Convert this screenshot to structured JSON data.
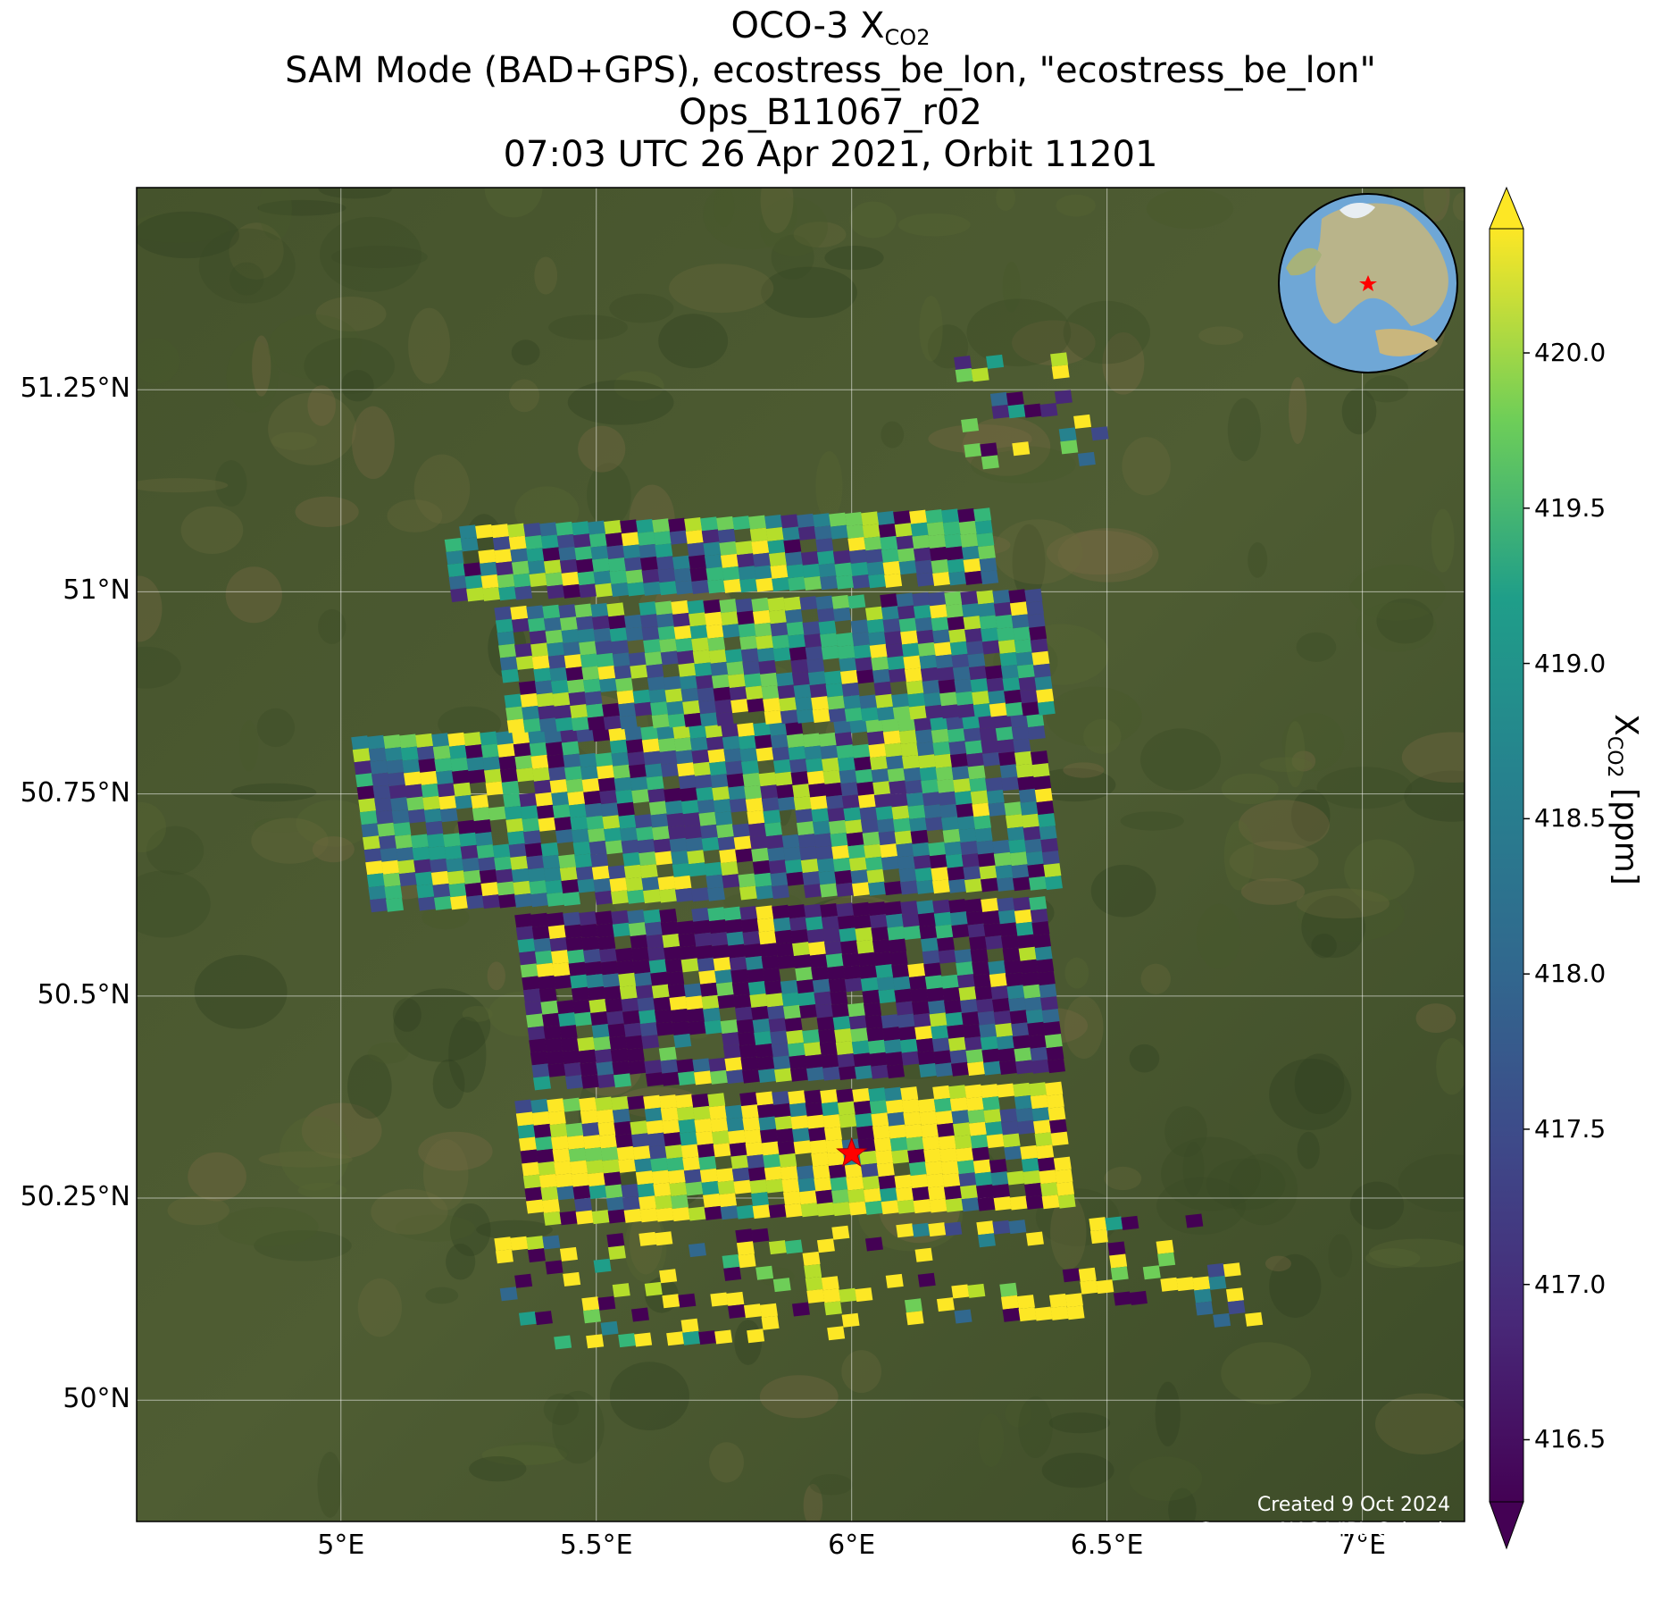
{
  "title": {
    "line1_main": "OCO-3 X",
    "line1_sub": "CO2",
    "line2": "SAM Mode (BAD+GPS), ecostress_be_lon, \"ecostress_be_lon\"",
    "line3": "Ops_B11067_r02",
    "line4": "07:03 UTC 26 Apr 2021, Orbit 11201"
  },
  "axes": {
    "lat_ticks": [
      "51.25°N",
      "51°N",
      "50.75°N",
      "50.5°N",
      "50.25°N",
      "50°N"
    ],
    "lon_ticks": [
      "5°E",
      "5.5°E",
      "6°E",
      "6.5°E",
      "7°E"
    ],
    "lat_values": [
      51.25,
      51.0,
      50.75,
      50.5,
      50.25,
      50.0
    ],
    "lon_values": [
      5.0,
      5.5,
      6.0,
      6.5,
      7.0
    ],
    "lon_range": [
      4.6,
      7.2
    ],
    "lat_range": [
      49.85,
      51.5
    ]
  },
  "colorbar": {
    "label_main": "X",
    "label_sub": "CO2",
    "label_unit": "[ppm]",
    "ticks": [
      "420.0",
      "419.5",
      "419.0",
      "418.5",
      "418.0",
      "417.5",
      "417.0",
      "416.5"
    ],
    "tick_values": [
      420.0,
      419.5,
      419.0,
      418.5,
      418.0,
      417.5,
      417.0,
      416.5
    ],
    "range": [
      416.3,
      420.4
    ],
    "colormap": "viridis",
    "extend": "both"
  },
  "target": {
    "lon": 6.0,
    "lat": 50.305,
    "marker": "red-star"
  },
  "credit": {
    "line1": "Created 9 Oct 2024",
    "line2": "Source: NASA/JPL-Caltech"
  },
  "colors": {
    "background": "#4a5a2e",
    "gridline": "#ffffff",
    "target": "#ff0000"
  },
  "chart_data": {
    "type": "heatmap",
    "title": "OCO-3 XCO2",
    "xlabel": "",
    "ylabel": "",
    "xlim": [
      4.6,
      7.2
    ],
    "ylim": [
      49.85,
      51.5
    ],
    "colorbar_range": [
      416.5,
      420.0
    ],
    "swaths": [
      {
        "lon": [
          5.34,
          6.42
        ],
        "lat": [
          50.21,
          50.37
        ],
        "pattern": "high"
      },
      {
        "lon": [
          5.34,
          6.4
        ],
        "lat": [
          50.37,
          50.6
        ],
        "pattern": "low"
      },
      {
        "lon": [
          5.02,
          6.4
        ],
        "lat": [
          50.6,
          50.82
        ],
        "pattern": "mixed"
      },
      {
        "lon": [
          5.3,
          6.4
        ],
        "lat": [
          50.82,
          50.98
        ],
        "pattern": "mixed"
      },
      {
        "lon": [
          5.2,
          6.3
        ],
        "lat": [
          50.98,
          51.08
        ],
        "pattern": "mixed"
      },
      {
        "lon": [
          5.3,
          6.8
        ],
        "lat": [
          50.05,
          50.2
        ],
        "pattern": "sparse-high"
      },
      {
        "lon": [
          6.2,
          6.5
        ],
        "lat": [
          51.14,
          51.29
        ],
        "pattern": "sparse"
      }
    ]
  }
}
